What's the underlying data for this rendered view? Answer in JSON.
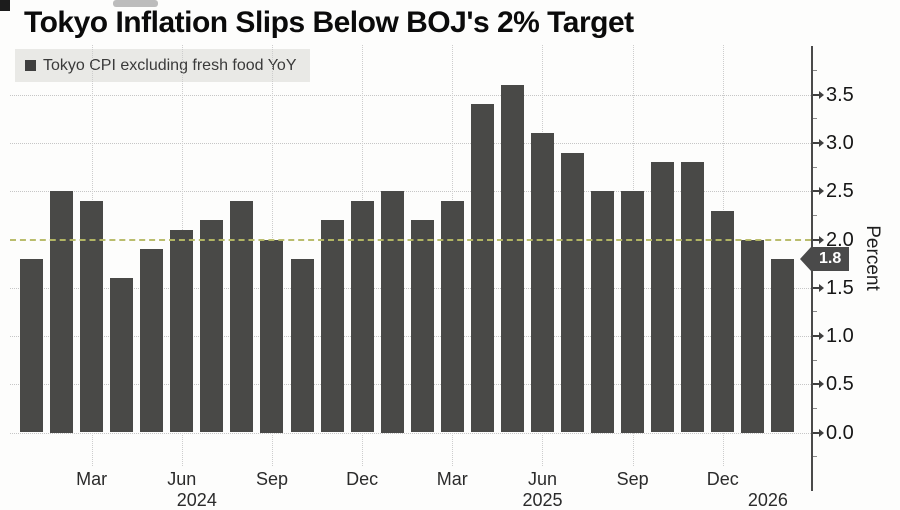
{
  "chart_data": {
    "type": "bar",
    "title": "Tokyo Inflation Slips Below BOJ's 2% Target",
    "legend": "Tokyo CPI excluding fresh food YoY",
    "legend_position": "top-left",
    "ylabel": "Percent",
    "axis_side": "right",
    "grid": true,
    "ylim": [
      -0.6,
      4.0
    ],
    "categories": [
      "Jan 2024",
      "Feb 2024",
      "Mar 2024",
      "Apr 2024",
      "May 2024",
      "Jun 2024",
      "Jul 2024",
      "Aug 2024",
      "Sep 2024",
      "Oct 2024",
      "Nov 2024",
      "Dec 2024",
      "Jan 2025",
      "Feb 2025",
      "Mar 2025",
      "Apr 2025",
      "May 2025",
      "Jun 2025",
      "Jul 2025",
      "Aug 2025",
      "Sep 2025",
      "Oct 2025",
      "Nov 2025",
      "Dec 2025",
      "Jan 2026",
      "Feb 2026"
    ],
    "values": [
      1.8,
      2.5,
      2.4,
      1.6,
      1.9,
      2.1,
      2.2,
      2.4,
      2.0,
      1.8,
      2.2,
      2.4,
      2.5,
      2.2,
      2.4,
      3.4,
      3.6,
      3.1,
      2.9,
      2.5,
      2.5,
      2.8,
      2.8,
      2.3,
      2.0,
      1.8
    ],
    "bar_color": "#494947",
    "yticks": [
      0.0,
      0.5,
      1.0,
      1.5,
      2.0,
      2.5,
      3.0,
      3.5
    ],
    "ytick_labels": [
      "0.0",
      "0.5",
      "1.0",
      "1.5",
      "2.0",
      "2.5",
      "3.0",
      "3.5"
    ],
    "xticks": [
      {
        "label": "Mar",
        "month_index": 2
      },
      {
        "label": "Jun",
        "month_index": 5
      },
      {
        "label": "Sep",
        "month_index": 8
      },
      {
        "label": "Dec",
        "month_index": 11
      },
      {
        "label": "Mar",
        "month_index": 14
      },
      {
        "label": "Jun",
        "month_index": 17
      },
      {
        "label": "Sep",
        "month_index": 20
      },
      {
        "label": "Dec",
        "month_index": 23
      }
    ],
    "year_labels": [
      {
        "text": "2024",
        "month_index": 5.5
      },
      {
        "text": "2025",
        "month_index": 17
      },
      {
        "text": "2026",
        "month_index": 24.5
      }
    ],
    "target_line": {
      "value": 2.0,
      "color": "#b7ba66",
      "style": "dashed"
    },
    "last_value_badge": {
      "text": "1.8",
      "value": 1.8,
      "bg": "#4a4a4a",
      "text_color": "#ffffff"
    }
  }
}
